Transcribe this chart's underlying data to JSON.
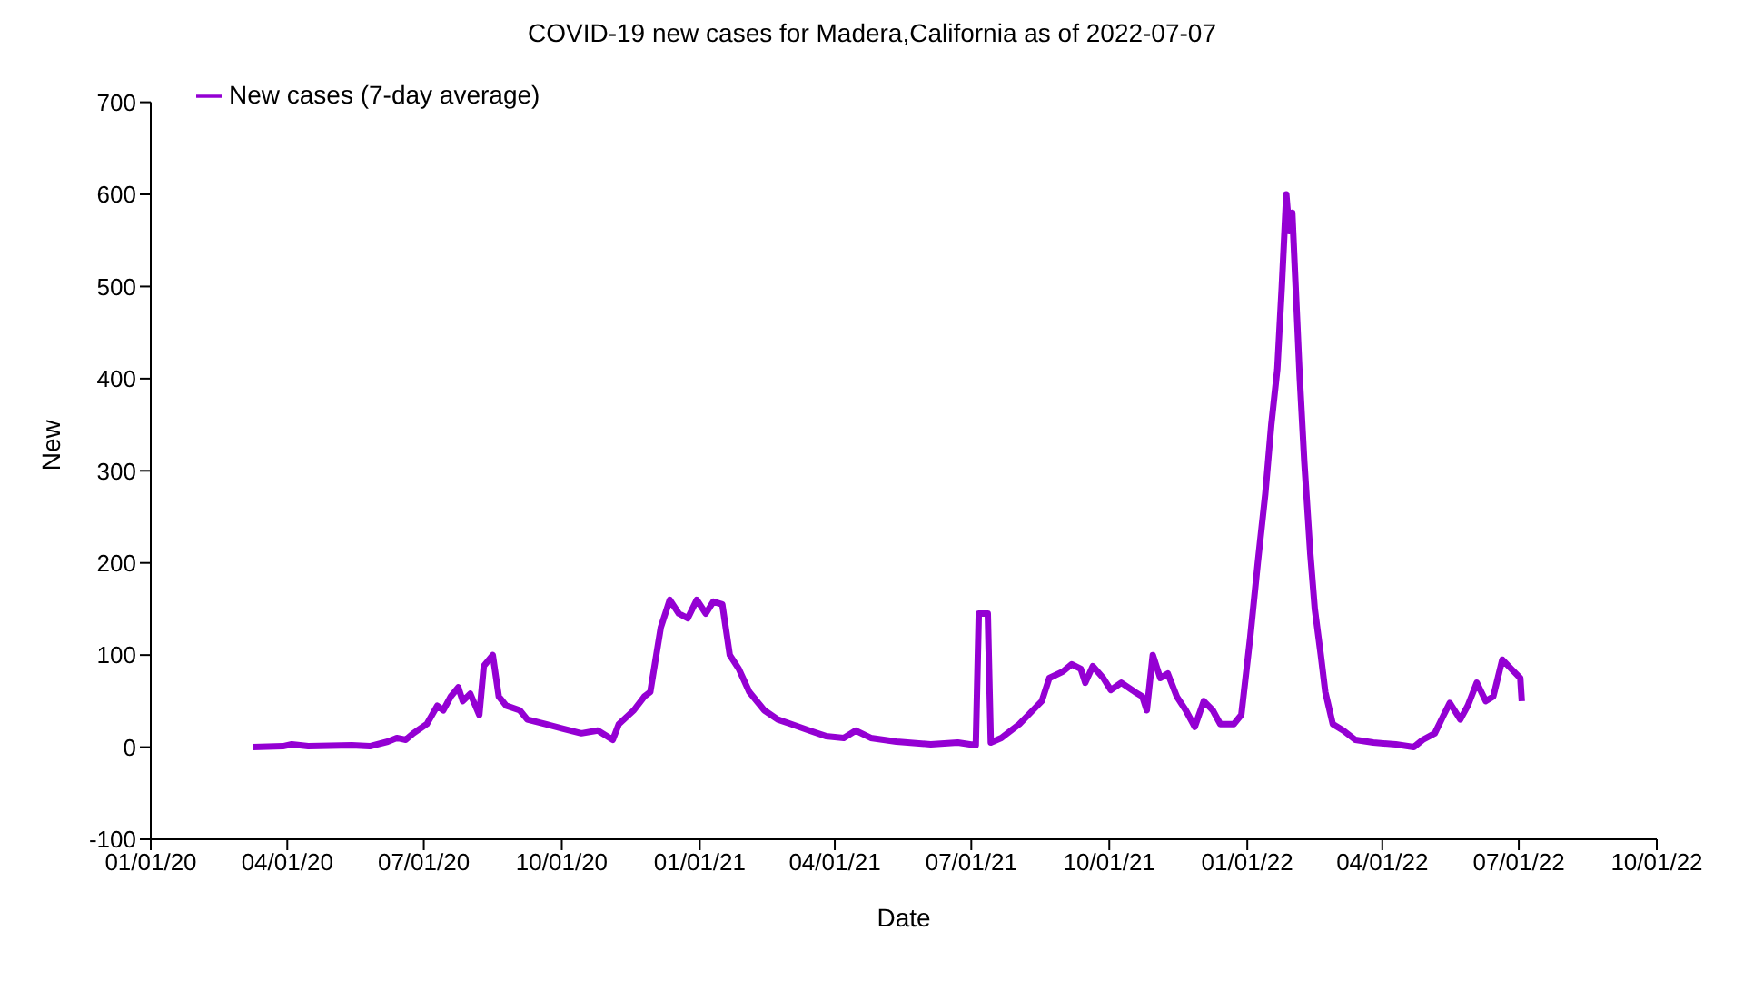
{
  "chart_data": {
    "type": "line",
    "title": "COVID-19 new cases for Madera,California as of 2022-07-07",
    "xlabel": "Date",
    "ylabel": "New",
    "x": [
      "2020-03-09",
      "2020-03-29",
      "2020-04-04",
      "2020-04-15",
      "2020-05-14",
      "2020-05-26",
      "2020-06-07",
      "2020-06-13",
      "2020-06-19",
      "2020-06-24",
      "2020-07-03",
      "2020-07-10",
      "2020-07-14",
      "2020-07-19",
      "2020-07-24",
      "2020-07-27",
      "2020-08-01",
      "2020-08-07",
      "2020-08-10",
      "2020-08-16",
      "2020-08-20",
      "2020-08-25",
      "2020-09-03",
      "2020-09-08",
      "2020-09-20",
      "2020-10-02",
      "2020-10-14",
      "2020-10-25",
      "2020-11-04",
      "2020-11-08",
      "2020-11-18",
      "2020-11-25",
      "2020-11-29",
      "2020-12-06",
      "2020-12-12",
      "2020-12-18",
      "2020-12-24",
      "2020-12-30",
      "2021-01-05",
      "2021-01-10",
      "2021-01-16",
      "2021-01-21",
      "2021-01-27",
      "2021-02-03",
      "2021-02-13",
      "2021-02-22",
      "2021-03-03",
      "2021-03-15",
      "2021-03-26",
      "2021-04-07",
      "2021-04-15",
      "2021-04-25",
      "2021-05-12",
      "2021-06-04",
      "2021-06-22",
      "2021-07-04",
      "2021-07-06",
      "2021-07-12",
      "2021-07-14",
      "2021-07-21",
      "2021-08-02",
      "2021-08-08",
      "2021-08-17",
      "2021-08-22",
      "2021-08-31",
      "2021-09-06",
      "2021-09-12",
      "2021-09-15",
      "2021-09-20",
      "2021-09-27",
      "2021-10-02",
      "2021-10-09",
      "2021-10-18",
      "2021-10-23",
      "2021-10-26",
      "2021-10-30",
      "2021-11-04",
      "2021-11-09",
      "2021-11-15",
      "2021-11-21",
      "2021-11-27",
      "2021-12-03",
      "2021-12-09",
      "2021-12-14",
      "2021-12-23",
      "2021-12-28",
      "2022-01-03",
      "2022-01-08",
      "2022-01-13",
      "2022-01-17",
      "2022-01-21",
      "2022-01-24",
      "2022-01-27",
      "2022-01-29",
      "2022-01-31",
      "2022-02-05",
      "2022-02-08",
      "2022-02-12",
      "2022-02-15",
      "2022-02-19",
      "2022-02-22",
      "2022-02-27",
      "2022-03-06",
      "2022-03-14",
      "2022-03-26",
      "2022-04-10",
      "2022-04-22",
      "2022-04-28",
      "2022-05-06",
      "2022-05-12",
      "2022-05-16",
      "2022-05-23",
      "2022-05-28",
      "2022-06-03",
      "2022-06-09",
      "2022-06-14",
      "2022-06-20",
      "2022-06-26",
      "2022-07-02",
      "2022-07-03"
    ],
    "series": [
      {
        "name": "New cases (7-day average)",
        "color": "#9400d3",
        "values": [
          0,
          1,
          3,
          1,
          2,
          1,
          6,
          10,
          8,
          15,
          25,
          45,
          40,
          55,
          65,
          50,
          58,
          35,
          88,
          100,
          55,
          45,
          40,
          30,
          25,
          20,
          15,
          18,
          8,
          25,
          40,
          55,
          60,
          130,
          160,
          145,
          140,
          160,
          145,
          158,
          155,
          100,
          85,
          60,
          40,
          30,
          25,
          18,
          12,
          10,
          18,
          10,
          6,
          3,
          5,
          2,
          145,
          145,
          5,
          10,
          25,
          35,
          50,
          75,
          82,
          90,
          85,
          70,
          88,
          75,
          62,
          70,
          60,
          55,
          40,
          100,
          75,
          80,
          55,
          40,
          22,
          50,
          40,
          25,
          25,
          35,
          120,
          200,
          275,
          350,
          410,
          500,
          600,
          560,
          580,
          400,
          310,
          210,
          150,
          100,
          60,
          25,
          18,
          8,
          5,
          3,
          0,
          8,
          15,
          35,
          48,
          30,
          45,
          70,
          50,
          55,
          95,
          85,
          75,
          50
        ]
      }
    ],
    "xlim": [
      "2020-01-01",
      "2022-10-01"
    ],
    "xticks": [
      {
        "value": "2020-01-01",
        "label": "01/01/20"
      },
      {
        "value": "2020-04-01",
        "label": "04/01/20"
      },
      {
        "value": "2020-07-01",
        "label": "07/01/20"
      },
      {
        "value": "2020-10-01",
        "label": "10/01/20"
      },
      {
        "value": "2021-01-01",
        "label": "01/01/21"
      },
      {
        "value": "2021-04-01",
        "label": "04/01/21"
      },
      {
        "value": "2021-07-01",
        "label": "07/01/21"
      },
      {
        "value": "2021-10-01",
        "label": "10/01/21"
      },
      {
        "value": "2022-01-01",
        "label": "01/01/22"
      },
      {
        "value": "2022-04-01",
        "label": "04/01/22"
      },
      {
        "value": "2022-07-01",
        "label": "07/01/22"
      },
      {
        "value": "2022-10-01",
        "label": "10/01/22"
      }
    ],
    "ylim": [
      -100,
      700
    ],
    "yticks": [
      -100,
      0,
      100,
      200,
      300,
      400,
      500,
      600,
      700
    ],
    "legend": "top left",
    "marker": "none",
    "line_style": "solid"
  }
}
